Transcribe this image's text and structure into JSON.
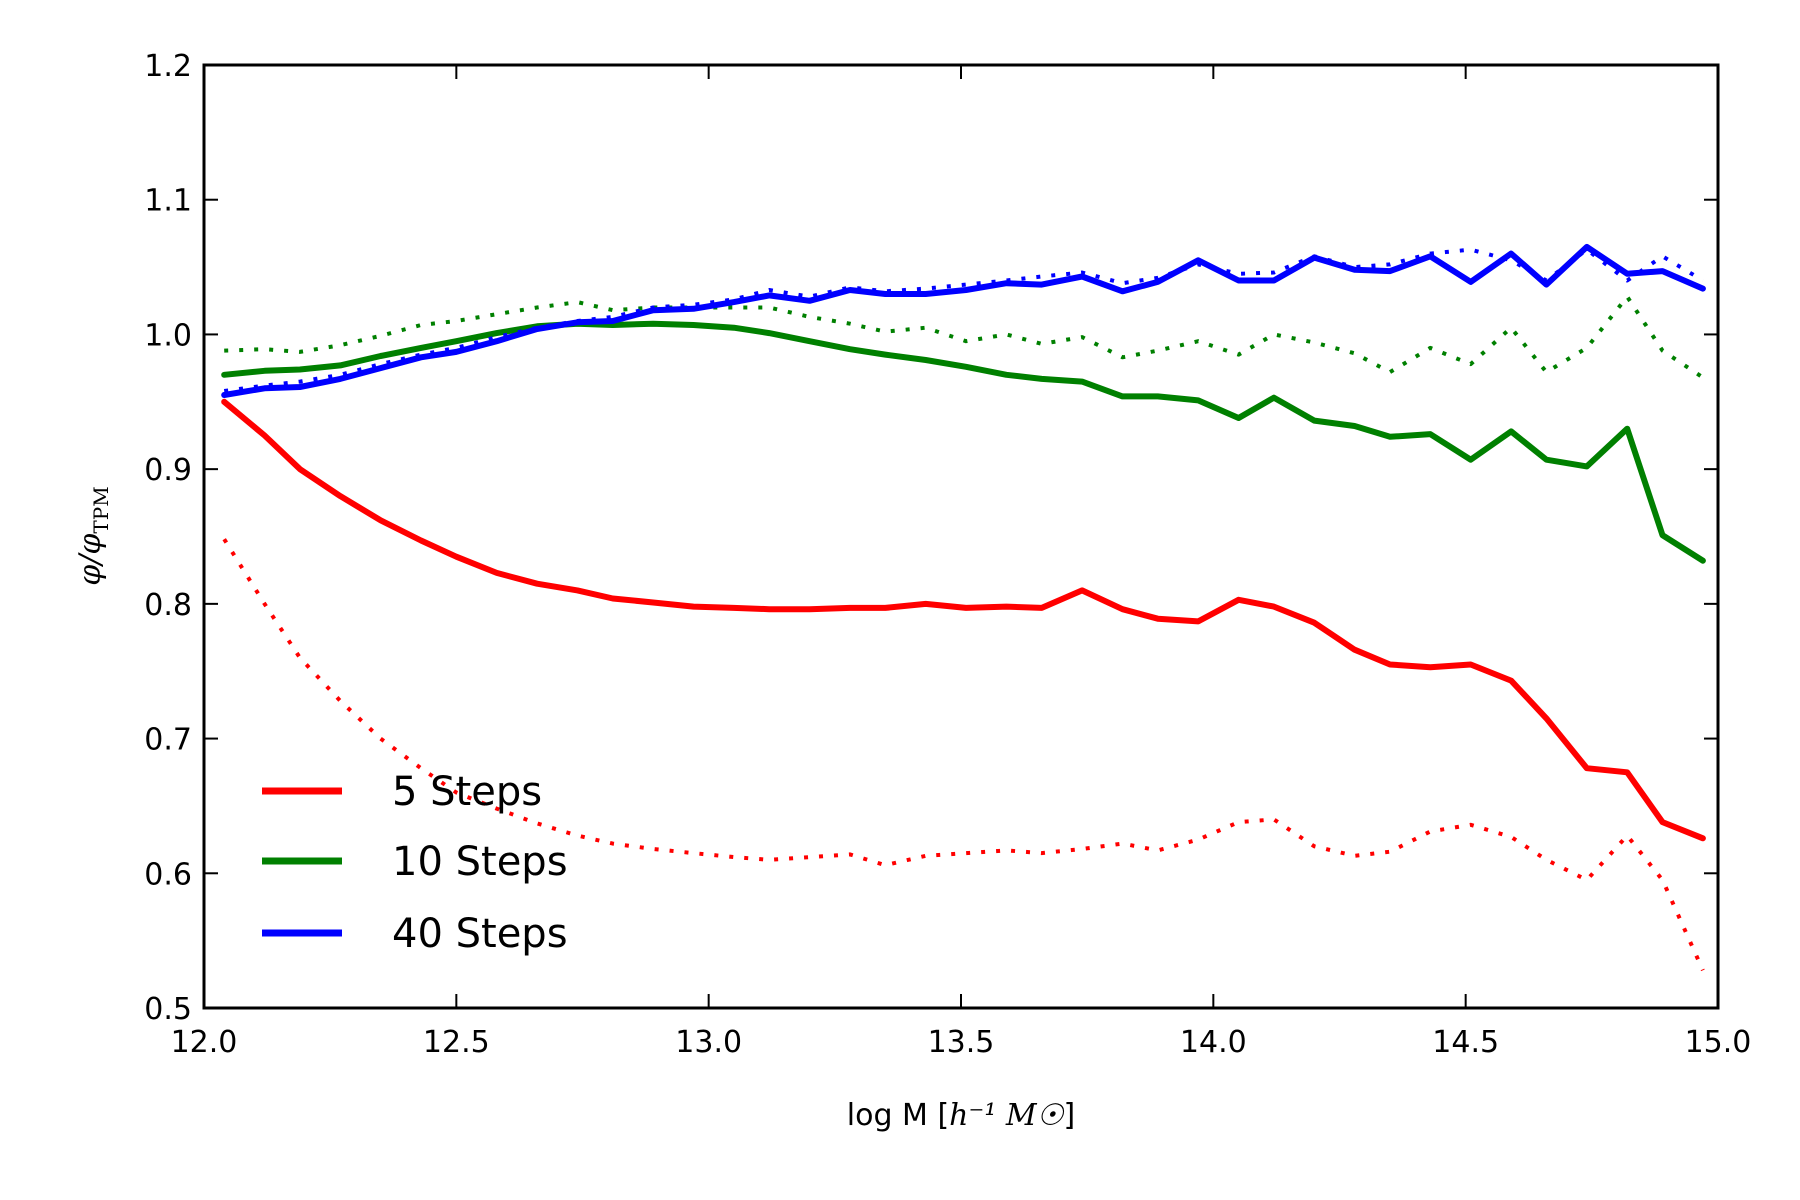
{
  "chart_data": {
    "type": "line",
    "title": "",
    "xlabel": "log M [h⁻¹ M☉]",
    "xlabel_parts": {
      "prefix": "log M [",
      "math": "h⁻¹ M☉",
      "suffix": "]"
    },
    "ylabel": "φ/φTPM",
    "ylabel_parts": {
      "main": "φ/φ",
      "sub": "TPM"
    },
    "xlim": [
      12.0,
      15.0
    ],
    "ylim": [
      0.5,
      1.2
    ],
    "xticks": [
      12.0,
      12.5,
      13.0,
      13.5,
      14.0,
      14.5,
      15.0
    ],
    "xtick_labels": [
      "12.0",
      "12.5",
      "13.0",
      "13.5",
      "14.0",
      "14.5",
      "15.0"
    ],
    "yticks": [
      0.5,
      0.6,
      0.7,
      0.8,
      0.9,
      1.0,
      1.1,
      1.2
    ],
    "ytick_labels": [
      "0.5",
      "0.6",
      "0.7",
      "0.8",
      "0.9",
      "1.0",
      "1.1",
      "1.2"
    ],
    "grid": false,
    "legend": {
      "placement": "lower-left",
      "entries": [
        "5 Steps",
        "10 Steps",
        "40 Steps"
      ]
    },
    "x": [
      12.04,
      12.12,
      12.19,
      12.27,
      12.35,
      12.43,
      12.5,
      12.58,
      12.66,
      12.74,
      12.81,
      12.89,
      12.97,
      13.05,
      13.12,
      13.2,
      13.28,
      13.35,
      13.43,
      13.51,
      13.59,
      13.66,
      13.74,
      13.82,
      13.89,
      13.97,
      14.05,
      14.12,
      14.2,
      14.28,
      14.35,
      14.43,
      14.51,
      14.59,
      14.66,
      14.74,
      14.82,
      14.89,
      14.97
    ],
    "series": [
      {
        "name": "5 Steps",
        "style": "solid",
        "color": "#ff0000",
        "values": [
          0.95,
          0.925,
          0.9,
          0.88,
          0.862,
          0.847,
          0.835,
          0.823,
          0.815,
          0.81,
          0.804,
          0.801,
          0.798,
          0.797,
          0.796,
          0.796,
          0.797,
          0.797,
          0.8,
          0.797,
          0.798,
          0.797,
          0.81,
          0.796,
          0.789,
          0.787,
          0.803,
          0.798,
          0.786,
          0.766,
          0.755,
          0.753,
          0.755,
          0.743,
          0.715,
          0.678,
          0.675,
          0.638,
          0.626
        ]
      },
      {
        "name": "5 Steps (dotted)",
        "style": "dotted",
        "color": "#ff0000",
        "values": [
          0.848,
          0.8,
          0.76,
          0.728,
          0.7,
          0.678,
          0.66,
          0.648,
          0.637,
          0.628,
          0.622,
          0.618,
          0.615,
          0.612,
          0.61,
          0.612,
          0.614,
          0.606,
          0.613,
          0.615,
          0.617,
          0.615,
          0.618,
          0.622,
          0.617,
          0.625,
          0.638,
          0.64,
          0.62,
          0.613,
          0.616,
          0.631,
          0.636,
          0.627,
          0.61,
          0.595,
          0.628,
          0.595,
          0.528
        ]
      },
      {
        "name": "10 Steps",
        "style": "solid",
        "color": "#008000",
        "values": [
          0.97,
          0.973,
          0.974,
          0.977,
          0.984,
          0.99,
          0.995,
          1.001,
          1.006,
          1.008,
          1.007,
          1.008,
          1.007,
          1.005,
          1.001,
          0.995,
          0.989,
          0.985,
          0.981,
          0.976,
          0.97,
          0.967,
          0.965,
          0.954,
          0.954,
          0.951,
          0.938,
          0.953,
          0.936,
          0.932,
          0.924,
          0.926,
          0.907,
          0.928,
          0.907,
          0.902,
          0.93,
          0.851,
          0.832
        ]
      },
      {
        "name": "10 Steps (dotted)",
        "style": "dotted",
        "color": "#008000",
        "values": [
          0.988,
          0.989,
          0.987,
          0.992,
          0.999,
          1.007,
          1.01,
          1.015,
          1.02,
          1.024,
          1.018,
          1.02,
          1.02,
          1.02,
          1.02,
          1.013,
          1.008,
          1.002,
          1.005,
          0.995,
          1.0,
          0.993,
          0.998,
          0.983,
          0.988,
          0.995,
          0.985,
          1.0,
          0.994,
          0.986,
          0.972,
          0.99,
          0.978,
          1.005,
          0.972,
          0.99,
          1.028,
          0.988,
          0.968
        ]
      },
      {
        "name": "40 Steps",
        "style": "solid",
        "color": "#0000ff",
        "values": [
          0.955,
          0.96,
          0.961,
          0.967,
          0.975,
          0.983,
          0.987,
          0.995,
          1.004,
          1.009,
          1.01,
          1.018,
          1.019,
          1.024,
          1.029,
          1.025,
          1.033,
          1.03,
          1.03,
          1.033,
          1.038,
          1.037,
          1.043,
          1.032,
          1.039,
          1.055,
          1.04,
          1.04,
          1.057,
          1.048,
          1.047,
          1.058,
          1.039,
          1.06,
          1.037,
          1.065,
          1.045,
          1.047,
          1.034
        ]
      },
      {
        "name": "40 Steps (dotted)",
        "style": "dotted",
        "color": "#0000ff",
        "values": [
          0.958,
          0.962,
          0.965,
          0.97,
          0.978,
          0.985,
          0.99,
          0.998,
          1.005,
          1.01,
          1.013,
          1.02,
          1.022,
          1.026,
          1.033,
          1.028,
          1.035,
          1.032,
          1.034,
          1.037,
          1.04,
          1.043,
          1.046,
          1.038,
          1.042,
          1.052,
          1.045,
          1.046,
          1.058,
          1.05,
          1.052,
          1.06,
          1.063,
          1.055,
          1.04,
          1.063,
          1.04,
          1.058,
          1.04
        ]
      }
    ]
  }
}
